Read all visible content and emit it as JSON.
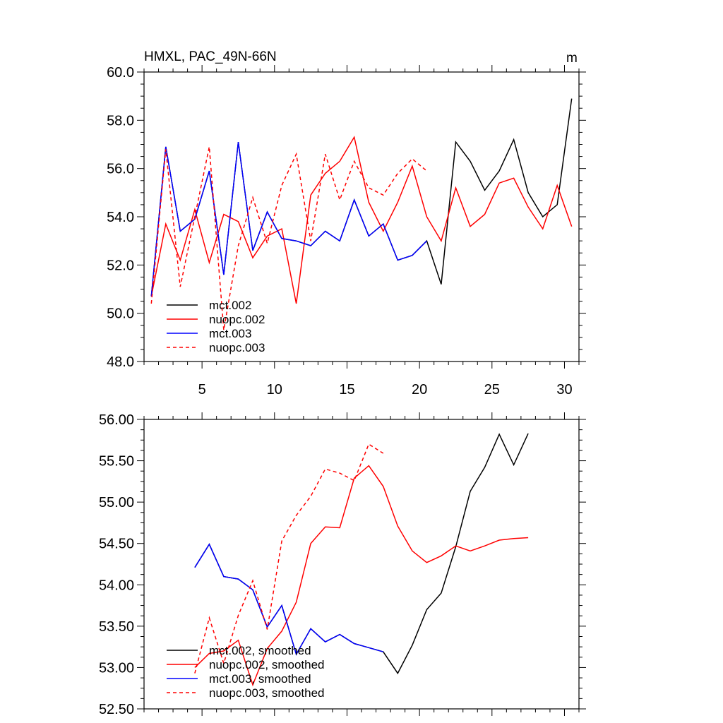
{
  "chart_data": [
    {
      "type": "line",
      "title": "HMXL, PAC_49N-66N",
      "units": "m",
      "xlim": [
        1,
        31
      ],
      "ylim": [
        48,
        60
      ],
      "yticks": [
        48,
        50,
        52,
        54,
        56,
        58,
        60
      ],
      "ytick_labels": [
        "48.0",
        "50.0",
        "52.0",
        "54.0",
        "56.0",
        "58.0",
        "60.0"
      ],
      "xticks": [
        5,
        10,
        15,
        20,
        25,
        30
      ],
      "xtick_labels": [
        "5",
        "10",
        "15",
        "20",
        "25",
        "30"
      ],
      "legend_position": "bottom-left",
      "series": [
        {
          "name": "mct.002",
          "color": "#000000",
          "dash": "solid",
          "x": [
            1.5,
            2.5,
            3.5,
            4.5,
            5.5,
            6.5,
            7.5,
            8.5,
            9.5,
            10.5,
            11.5,
            12.5,
            13.5,
            14.5,
            15.5,
            16.5,
            17.5,
            18.5,
            19.5,
            20.5,
            21.5,
            22.5,
            23.5,
            24.5,
            25.5,
            26.5,
            27.5,
            28.5,
            29.5,
            30.5
          ],
          "values": [
            50.7,
            56.9,
            53.4,
            53.9,
            55.9,
            51.6,
            57.1,
            52.6,
            54.2,
            53.1,
            53.0,
            52.8,
            53.4,
            53.0,
            54.7,
            53.2,
            53.7,
            52.2,
            52.4,
            53.0,
            51.2,
            57.1,
            56.3,
            55.1,
            55.9,
            57.2,
            55.0,
            54.0,
            54.5,
            58.9
          ]
        },
        {
          "name": "nuopc.002",
          "color": "#ff0000",
          "dash": "solid",
          "x": [
            1.5,
            2.5,
            3.5,
            4.5,
            5.5,
            6.5,
            7.5,
            8.5,
            9.5,
            10.5,
            11.5,
            12.5,
            13.5,
            14.5,
            15.5,
            16.5,
            17.5,
            18.5,
            19.5,
            20.5,
            21.5,
            22.5,
            23.5,
            24.5,
            25.5,
            26.5,
            27.5,
            28.5,
            29.5,
            30.5
          ],
          "values": [
            50.7,
            53.7,
            52.2,
            54.3,
            52.1,
            54.1,
            53.8,
            52.3,
            53.2,
            53.5,
            50.4,
            54.9,
            55.8,
            56.3,
            57.3,
            54.6,
            53.4,
            54.6,
            56.1,
            54.0,
            53.0,
            55.2,
            53.6,
            54.1,
            55.4,
            55.6,
            54.4,
            53.5,
            55.3,
            53.6
          ]
        },
        {
          "name": "mct.003",
          "color": "#0000ff",
          "dash": "solid",
          "x": [
            1.5,
            2.5,
            3.5,
            4.5,
            5.5,
            6.5,
            7.5,
            8.5,
            9.5,
            10.5,
            11.5,
            12.5,
            13.5,
            14.5,
            15.5,
            16.5,
            17.5,
            18.5,
            19.5,
            20.5
          ],
          "values": [
            50.7,
            56.9,
            53.4,
            53.9,
            55.9,
            51.6,
            57.1,
            52.6,
            54.2,
            53.1,
            53.0,
            52.8,
            53.4,
            53.0,
            54.7,
            53.2,
            53.7,
            52.2,
            52.4,
            53.0
          ]
        },
        {
          "name": "nuopc.003",
          "color": "#ff0000",
          "dash": "dashed",
          "x": [
            1.5,
            2.5,
            3.5,
            4.5,
            5.5,
            6.5,
            7.5,
            8.5,
            9.5,
            10.5,
            11.5,
            12.5,
            13.5,
            14.5,
            15.5,
            16.5,
            17.5,
            18.5,
            19.5,
            20.5
          ],
          "values": [
            50.4,
            56.8,
            51.1,
            54.0,
            56.9,
            49.3,
            52.8,
            54.8,
            52.9,
            55.3,
            56.6,
            53.0,
            56.6,
            54.7,
            56.3,
            55.2,
            54.9,
            55.8,
            56.4,
            55.9
          ]
        }
      ]
    },
    {
      "type": "line",
      "title": "",
      "xlim": [
        1,
        31
      ],
      "ylim": [
        52.5,
        56.0
      ],
      "yticks": [
        52.5,
        53.0,
        53.5,
        54.0,
        54.5,
        55.0,
        55.5,
        56.0
      ],
      "ytick_labels": [
        "52.50",
        "53.00",
        "53.50",
        "54.00",
        "54.50",
        "55.00",
        "55.50",
        "56.00"
      ],
      "xticks": [
        5,
        10,
        15,
        20,
        25,
        30
      ],
      "xtick_labels": [],
      "legend_position": "bottom-left",
      "series": [
        {
          "name": "mct.002, smoothed",
          "color": "#000000",
          "dash": "solid",
          "x": [
            4.5,
            5.5,
            6.5,
            7.5,
            8.5,
            9.5,
            10.5,
            11.5,
            12.5,
            13.5,
            14.5,
            15.5,
            16.5,
            17.5,
            18.5,
            19.5,
            20.5,
            21.5,
            22.5,
            23.5,
            24.5,
            25.5,
            26.5,
            27.5
          ],
          "values": [
            54.21,
            54.49,
            54.1,
            54.07,
            53.94,
            53.49,
            53.75,
            53.16,
            53.47,
            53.31,
            53.4,
            53.29,
            53.24,
            53.19,
            52.93,
            53.27,
            53.7,
            53.9,
            54.46,
            55.13,
            55.42,
            55.82,
            55.45,
            55.83
          ]
        },
        {
          "name": "nuopc.002, smoothed",
          "color": "#ff0000",
          "dash": "solid",
          "x": [
            4.5,
            5.5,
            6.5,
            7.5,
            8.5,
            9.5,
            10.5,
            11.5,
            12.5,
            13.5,
            14.5,
            15.5,
            16.5,
            17.5,
            18.5,
            19.5,
            20.5,
            21.5,
            22.5,
            23.5,
            24.5,
            25.5,
            26.5,
            27.5
          ],
          "values": [
            53.0,
            53.17,
            53.2,
            53.33,
            52.79,
            53.23,
            53.44,
            53.79,
            54.5,
            54.7,
            54.69,
            55.29,
            55.44,
            55.19,
            54.71,
            54.41,
            54.27,
            54.35,
            54.47,
            54.41,
            54.47,
            54.54,
            54.56,
            54.57
          ]
        },
        {
          "name": "mct.003, smoothed",
          "color": "#0000ff",
          "dash": "solid",
          "x": [
            4.5,
            5.5,
            6.5,
            7.5,
            8.5,
            9.5,
            10.5,
            11.5,
            12.5,
            13.5,
            14.5,
            15.5,
            16.5,
            17.5
          ],
          "values": [
            54.21,
            54.49,
            54.1,
            54.07,
            53.94,
            53.49,
            53.75,
            53.16,
            53.47,
            53.31,
            53.4,
            53.29,
            53.24,
            53.19
          ]
        },
        {
          "name": "nuopc.003, smoothed",
          "color": "#ff0000",
          "dash": "dashed",
          "x": [
            4.5,
            5.5,
            6.5,
            7.5,
            8.5,
            9.5,
            10.5,
            11.5,
            12.5,
            13.5,
            14.5,
            15.5,
            16.5,
            17.5
          ],
          "values": [
            52.93,
            53.6,
            53.05,
            53.63,
            54.05,
            53.46,
            54.53,
            54.84,
            55.07,
            55.4,
            55.35,
            55.26,
            55.7,
            55.59
          ]
        }
      ]
    }
  ]
}
